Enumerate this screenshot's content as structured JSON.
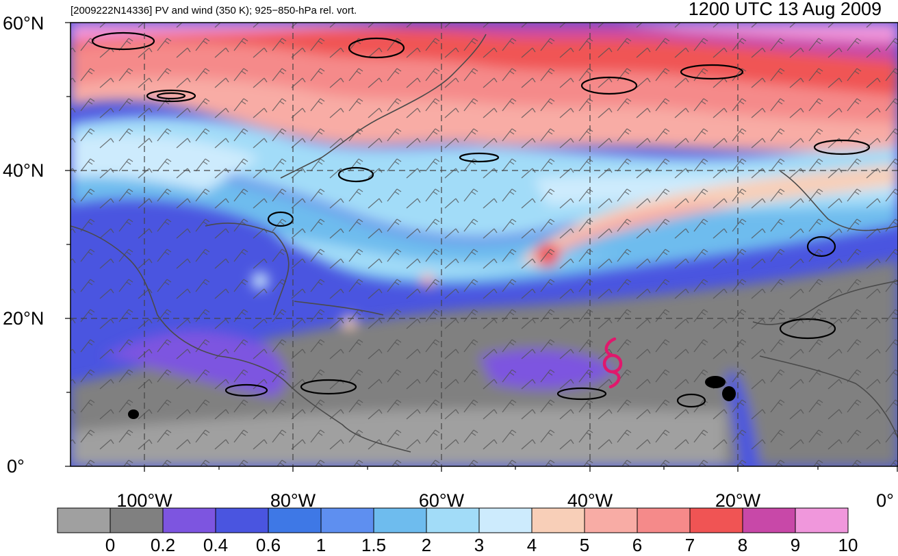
{
  "header": {
    "left_title": "[2009222N14336] PV and wind (350 K); 925−850-hPa rel. vort.",
    "right_title": "1200 UTC 13 Aug 2009"
  },
  "map": {
    "projection": "cylindrical-equidistant",
    "lon_range": [
      -110,
      0
    ],
    "lat_range": [
      0,
      60
    ],
    "gridlines": "dashed",
    "lat_labels": [
      "60°N",
      "40°N",
      "20°N",
      "0°"
    ],
    "lon_labels": [
      "100°W",
      "80°W",
      "60°W",
      "40°W",
      "20°W",
      "0°"
    ],
    "storm_symbol": "tropical-cyclone-icon",
    "storm_color": "#e0186c",
    "storm_position": {
      "lon": -37,
      "lat": 14
    }
  },
  "colorbar": {
    "labels": [
      "0",
      "0.2",
      "0.4",
      "0.6",
      "1",
      "1.5",
      "2",
      "3",
      "4",
      "5",
      "6",
      "7",
      "8",
      "9",
      "10"
    ],
    "colors": [
      "#a0a0a0",
      "#808080",
      "#7d55e0",
      "#4a55e0",
      "#3e78e6",
      "#5e8ff0",
      "#6ebcee",
      "#a2dcf8",
      "#cdebfd",
      "#f8cfb8",
      "#f8aca5",
      "#f58a8a",
      "#f05454",
      "#c848a8",
      "#f097dc"
    ]
  }
}
